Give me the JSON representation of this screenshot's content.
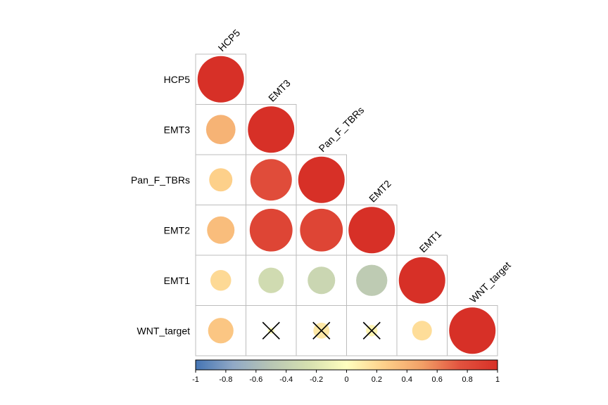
{
  "chart_data": {
    "type": "heatmap",
    "variables": [
      "HCP5",
      "EMT3",
      "Pan_F_TBRs",
      "EMT2",
      "EMT1",
      "WNT_target"
    ],
    "matrix": [
      [
        1.0,
        0.4,
        0.25,
        0.35,
        0.2,
        0.3
      ],
      [
        0.4,
        1.0,
        0.8,
        0.85,
        -0.3,
        0.02
      ],
      [
        0.25,
        0.8,
        1.0,
        0.85,
        -0.35,
        0.12
      ],
      [
        0.35,
        0.85,
        0.85,
        1.0,
        -0.45,
        0.06
      ],
      [
        0.2,
        -0.3,
        -0.35,
        -0.45,
        1.0,
        0.18
      ],
      [
        0.3,
        0.02,
        0.12,
        0.06,
        0.18,
        1.0
      ]
    ],
    "crossed": [
      [
        5,
        1
      ],
      [
        5,
        2
      ],
      [
        5,
        3
      ]
    ],
    "colorbar": {
      "ticks": [
        -1,
        -0.8,
        -0.6,
        -0.4,
        -0.2,
        0,
        0.2,
        0.4,
        0.6,
        0.8,
        1
      ],
      "tick_labels": [
        "-1",
        "-0.8",
        "-0.6",
        "-0.4",
        "-0.2",
        "0",
        "0.2",
        "0.4",
        "0.6",
        "0.8",
        "1"
      ],
      "colors": [
        "#4575b4",
        "#91a9c6",
        "#b8c6b4",
        "#d6e0b0",
        "#ffffbf",
        "#fdd08a",
        "#f2a067",
        "#e2533f",
        "#d73027"
      ]
    }
  }
}
